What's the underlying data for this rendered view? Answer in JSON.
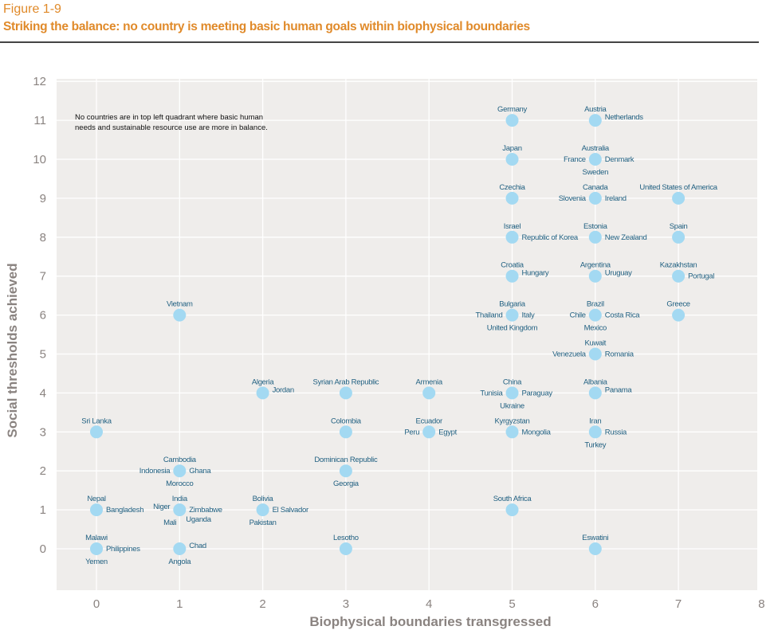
{
  "figure_number": "Figure 1-9",
  "figure_title": "Striking the balance: no country is meeting basic human goals within biophysical boundaries",
  "colors": {
    "title": "#e08a2a",
    "point": "#a3d9f2",
    "label": "#1f5f80",
    "plot_bg": "#efedeb",
    "grid": "#ffffff",
    "axis_text": "#8a8380"
  },
  "chart_data": {
    "type": "scatter",
    "title": "Striking the balance: no country is meeting basic human goals within biophysical boundaries",
    "xlabel": "Biophysical boundaries transgressed",
    "ylabel": "Social thresholds achieved",
    "xlim": [
      -0.5,
      8
    ],
    "ylim": [
      -1,
      12
    ],
    "xticks": [
      "0",
      "1",
      "2",
      "3",
      "4",
      "5",
      "6",
      "7",
      "8"
    ],
    "yticks": [
      "0",
      "1",
      "2",
      "3",
      "4",
      "5",
      "6",
      "7",
      "8",
      "9",
      "10",
      "11",
      "12"
    ],
    "grid": true,
    "annotation": [
      "No countries are in top left quadrant where basic human",
      "needs and sustainable resource use are more in balance."
    ],
    "points": [
      {
        "x": 5,
        "y": 11,
        "labels": [
          {
            "text": "Germany",
            "pos": "top"
          }
        ]
      },
      {
        "x": 6,
        "y": 11,
        "labels": [
          {
            "text": "Austria",
            "pos": "top"
          },
          {
            "text": "Netherlands",
            "pos": "right-up"
          }
        ]
      },
      {
        "x": 5,
        "y": 10,
        "labels": [
          {
            "text": "Japan",
            "pos": "top"
          }
        ]
      },
      {
        "x": 6,
        "y": 10,
        "labels": [
          {
            "text": "Australia",
            "pos": "top"
          },
          {
            "text": "France",
            "pos": "left"
          },
          {
            "text": "Denmark",
            "pos": "right"
          },
          {
            "text": "Sweden",
            "pos": "bottom"
          }
        ]
      },
      {
        "x": 5,
        "y": 9,
        "labels": [
          {
            "text": "Czechia",
            "pos": "top"
          }
        ]
      },
      {
        "x": 6,
        "y": 9,
        "labels": [
          {
            "text": "Canada",
            "pos": "top"
          },
          {
            "text": "Slovenia",
            "pos": "left"
          },
          {
            "text": "Ireland",
            "pos": "right"
          }
        ]
      },
      {
        "x": 7,
        "y": 9,
        "labels": [
          {
            "text": "United States of America",
            "pos": "top"
          }
        ]
      },
      {
        "x": 5,
        "y": 8,
        "labels": [
          {
            "text": "Israel",
            "pos": "top"
          },
          {
            "text": "Republic of Korea",
            "pos": "right"
          }
        ]
      },
      {
        "x": 6,
        "y": 8,
        "labels": [
          {
            "text": "Estonia",
            "pos": "top"
          },
          {
            "text": "New Zealand",
            "pos": "right"
          }
        ]
      },
      {
        "x": 7,
        "y": 8,
        "labels": [
          {
            "text": "Spain",
            "pos": "top"
          }
        ]
      },
      {
        "x": 5,
        "y": 7,
        "labels": [
          {
            "text": "Croatia",
            "pos": "top"
          },
          {
            "text": "Hungary",
            "pos": "right-up"
          }
        ]
      },
      {
        "x": 6,
        "y": 7,
        "labels": [
          {
            "text": "Argentina",
            "pos": "top"
          },
          {
            "text": "Uruguay",
            "pos": "right-up"
          }
        ]
      },
      {
        "x": 7,
        "y": 7,
        "labels": [
          {
            "text": "Kazakhstan",
            "pos": "top"
          },
          {
            "text": "Portugal",
            "pos": "right"
          }
        ]
      },
      {
        "x": 5,
        "y": 6,
        "labels": [
          {
            "text": "Bulgaria",
            "pos": "top"
          },
          {
            "text": "Thailand",
            "pos": "left"
          },
          {
            "text": "Italy",
            "pos": "right"
          },
          {
            "text": "United Kingdom",
            "pos": "bottom"
          }
        ]
      },
      {
        "x": 6,
        "y": 6,
        "labels": [
          {
            "text": "Brazil",
            "pos": "top"
          },
          {
            "text": "Chile",
            "pos": "left"
          },
          {
            "text": "Costa Rica",
            "pos": "right"
          },
          {
            "text": "Mexico",
            "pos": "bottom"
          }
        ]
      },
      {
        "x": 7,
        "y": 6,
        "labels": [
          {
            "text": "Greece",
            "pos": "top"
          }
        ]
      },
      {
        "x": 6,
        "y": 5,
        "labels": [
          {
            "text": "Kuwait",
            "pos": "top"
          },
          {
            "text": "Venezuela",
            "pos": "left"
          },
          {
            "text": "Romania",
            "pos": "right"
          }
        ]
      },
      {
        "x": 5,
        "y": 4,
        "labels": [
          {
            "text": "China",
            "pos": "top"
          },
          {
            "text": "Tunisia",
            "pos": "left"
          },
          {
            "text": "Paraguay",
            "pos": "right"
          },
          {
            "text": "Ukraine",
            "pos": "bottom"
          }
        ]
      },
      {
        "x": 6,
        "y": 4,
        "labels": [
          {
            "text": "Albania",
            "pos": "top"
          },
          {
            "text": "Panama",
            "pos": "right-up"
          }
        ]
      },
      {
        "x": 5,
        "y": 3,
        "labels": [
          {
            "text": "Kyrgyzstan",
            "pos": "top"
          },
          {
            "text": "Mongolia",
            "pos": "right"
          }
        ]
      },
      {
        "x": 6,
        "y": 3,
        "labels": [
          {
            "text": "Iran",
            "pos": "top"
          },
          {
            "text": "Russia",
            "pos": "right"
          },
          {
            "text": "Turkey",
            "pos": "bottom"
          }
        ]
      },
      {
        "x": 5,
        "y": 1,
        "labels": [
          {
            "text": "South Africa",
            "pos": "top"
          }
        ]
      },
      {
        "x": 6,
        "y": 0,
        "labels": [
          {
            "text": "Eswatini",
            "pos": "top"
          }
        ]
      },
      {
        "x": 1,
        "y": 6,
        "labels": [
          {
            "text": "Vietnam",
            "pos": "top"
          }
        ]
      },
      {
        "x": 2,
        "y": 4,
        "labels": [
          {
            "text": "Algeria",
            "pos": "top"
          },
          {
            "text": "Jordan",
            "pos": "right-up"
          }
        ]
      },
      {
        "x": 3,
        "y": 4,
        "labels": [
          {
            "text": "Syrian Arab Republic",
            "pos": "top"
          }
        ]
      },
      {
        "x": 4,
        "y": 4,
        "labels": [
          {
            "text": "Armenia",
            "pos": "top"
          }
        ]
      },
      {
        "x": 0,
        "y": 3,
        "labels": [
          {
            "text": "Sri Lanka",
            "pos": "top"
          }
        ]
      },
      {
        "x": 3,
        "y": 3,
        "labels": [
          {
            "text": "Colombia",
            "pos": "top"
          }
        ]
      },
      {
        "x": 4,
        "y": 3,
        "labels": [
          {
            "text": "Ecuador",
            "pos": "top"
          },
          {
            "text": "Peru",
            "pos": "left"
          },
          {
            "text": "Egypt",
            "pos": "right"
          }
        ]
      },
      {
        "x": 1,
        "y": 2,
        "labels": [
          {
            "text": "Cambodia",
            "pos": "top"
          },
          {
            "text": "Indonesia",
            "pos": "left"
          },
          {
            "text": "Ghana",
            "pos": "right"
          },
          {
            "text": "Morocco",
            "pos": "bottom"
          }
        ]
      },
      {
        "x": 3,
        "y": 2,
        "labels": [
          {
            "text": "Dominican Republic",
            "pos": "top"
          },
          {
            "text": "Georgia",
            "pos": "bottom"
          }
        ]
      },
      {
        "x": 0,
        "y": 1,
        "labels": [
          {
            "text": "Nepal",
            "pos": "top"
          },
          {
            "text": "Bangladesh",
            "pos": "right"
          }
        ]
      },
      {
        "x": 1,
        "y": 1,
        "labels": [
          {
            "text": "India",
            "pos": "top"
          },
          {
            "text": "Niger",
            "pos": "left-up"
          },
          {
            "text": "Zimbabwe",
            "pos": "right"
          },
          {
            "text": "Mali",
            "pos": "bottom-left"
          },
          {
            "text": "Uganda",
            "pos": "bottom-right"
          }
        ]
      },
      {
        "x": 2,
        "y": 1,
        "labels": [
          {
            "text": "Bolivia",
            "pos": "top"
          },
          {
            "text": "El Salvador",
            "pos": "right"
          },
          {
            "text": "Pakistan",
            "pos": "bottom"
          }
        ]
      },
      {
        "x": 0,
        "y": 0,
        "labels": [
          {
            "text": "Malawi",
            "pos": "top"
          },
          {
            "text": "Philippines",
            "pos": "right"
          },
          {
            "text": "Yemen",
            "pos": "bottom"
          }
        ]
      },
      {
        "x": 1,
        "y": 0,
        "labels": [
          {
            "text": "Chad",
            "pos": "right-up"
          },
          {
            "text": "Angola",
            "pos": "bottom"
          }
        ]
      },
      {
        "x": 3,
        "y": 0,
        "labels": [
          {
            "text": "Lesotho",
            "pos": "top"
          }
        ]
      }
    ]
  }
}
